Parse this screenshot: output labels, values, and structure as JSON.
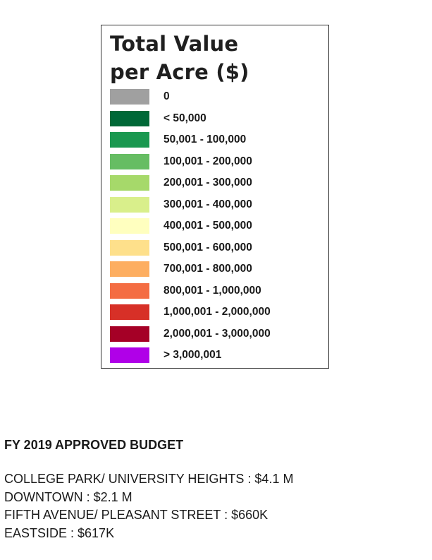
{
  "legend": {
    "title_line1": "Total Value",
    "title_line2": "per Acre ($)",
    "items": [
      {
        "label": "0",
        "color": "#a0a0a0"
      },
      {
        "label": "< 50,000",
        "color": "#006837"
      },
      {
        "label": "50,001 - 100,000",
        "color": "#1a9850"
      },
      {
        "label": "100,001 - 200,000",
        "color": "#66bd63"
      },
      {
        "label": "200,001 - 300,000",
        "color": "#a6d96a"
      },
      {
        "label": "300,001 - 400,000",
        "color": "#d9ef8b"
      },
      {
        "label": "400,001 - 500,000",
        "color": "#ffffbf"
      },
      {
        "label": "500,001 - 600,000",
        "color": "#fee08b"
      },
      {
        "label": "700,001 - 800,000",
        "color": "#fdae61"
      },
      {
        "label": "800,001 - 1,000,000",
        "color": "#f46d43"
      },
      {
        "label": "1,000,001 - 2,000,000",
        "color": "#d73027"
      },
      {
        "label": "2,000,001 - 3,000,000",
        "color": "#a50026"
      },
      {
        "label": "> 3,000,001",
        "color": "#b000e8"
      }
    ]
  },
  "budget": {
    "heading": "FY 2019 APPROVED BUDGET",
    "lines": [
      "COLLEGE PARK/ UNIVERSITY HEIGHTS : $4.1 M",
      "DOWNTOWN : $2.1 M",
      "FIFTH AVENUE/ PLEASANT STREET : $660K",
      "EASTSIDE : $617K"
    ]
  }
}
